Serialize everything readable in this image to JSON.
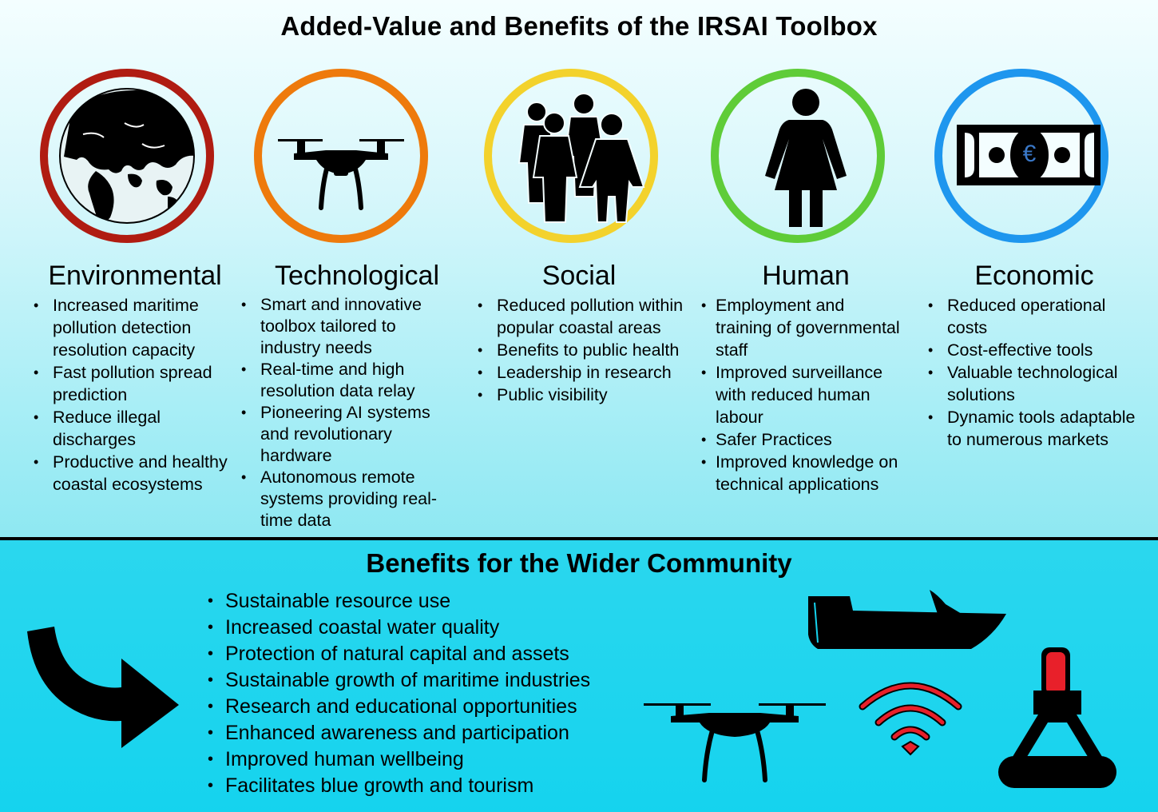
{
  "title": "Added-Value and Benefits of the IRSAI Toolbox",
  "colors": {
    "environmental": "#b01c12",
    "technological": "#ee7a0c",
    "social": "#f3d22c",
    "human": "#5fcc38",
    "economic": "#1e96ee",
    "signal": "#e8202a",
    "euro": "#3a78c8"
  },
  "categories": [
    {
      "heading": "Environmental",
      "icon": "globe-icon",
      "items": [
        "Increased maritime pollution detection resolution capacity",
        "Fast pollution spread prediction",
        "Reduce illegal discharges",
        "Productive and healthy coastal ecosystems"
      ]
    },
    {
      "heading": "Technological",
      "icon": "drone-icon",
      "items": [
        "Smart and innovative toolbox tailored to industry needs",
        "Real-time and high resolution data relay",
        "Pioneering AI systems and revolutionary hardware",
        "Autonomous remote systems providing real-time data"
      ]
    },
    {
      "heading": "Social",
      "icon": "people-group-icon",
      "items": [
        "Reduced pollution within popular coastal areas",
        "Benefits to public health",
        "Leadership in research",
        "Public visibility"
      ]
    },
    {
      "heading": "Human",
      "icon": "person-icon",
      "items": [
        "Employment and training of governmental staff",
        "Improved surveillance with reduced human labour",
        "Safer Practices",
        "Improved knowledge on technical applications"
      ]
    },
    {
      "heading": "Economic",
      "icon": "banknote-icon",
      "euro_symbol": "€",
      "items": [
        "Reduced operational costs",
        "Cost-effective tools",
        "Valuable technological solutions",
        "Dynamic tools adaptable to numerous markets"
      ]
    }
  ],
  "wider": {
    "title": "Benefits for the Wider Community",
    "items": [
      "Sustainable resource use",
      "Increased coastal water quality",
      "Protection of natural capital and assets",
      "Sustainable growth of maritime industries",
      "Research and educational opportunities",
      "Enhanced awareness and participation",
      "Improved human wellbeing",
      "Facilitates blue growth and tourism"
    ],
    "icons": [
      "curved-arrow-icon",
      "boat-icon",
      "drone-icon",
      "wifi-signal-icon",
      "buoy-icon"
    ]
  }
}
